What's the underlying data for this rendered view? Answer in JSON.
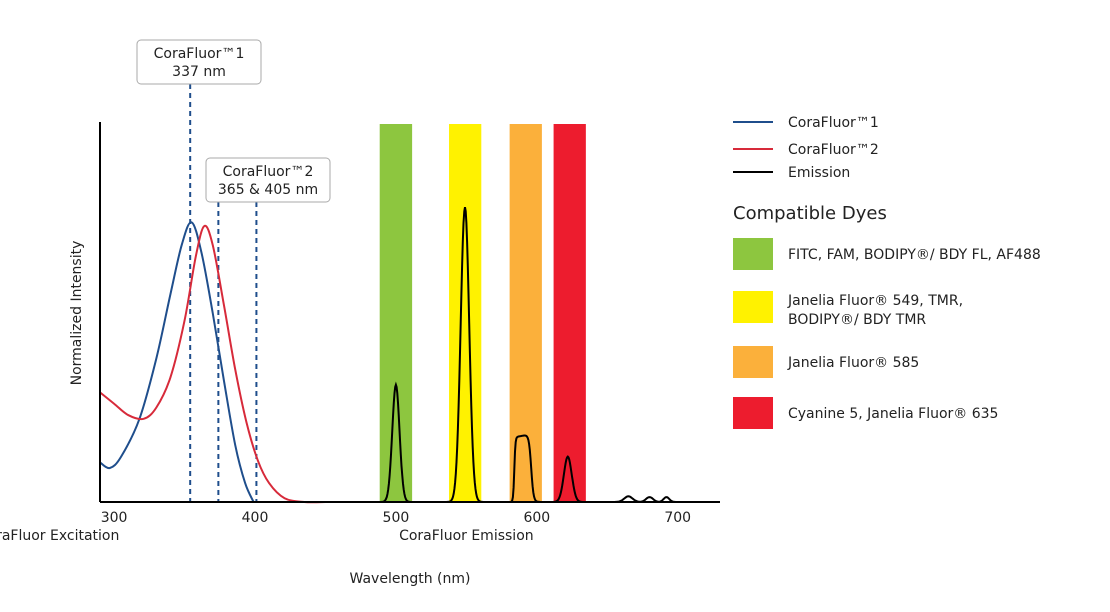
{
  "chart_data": {
    "type": "line",
    "xlabel": "Wavelength (nm)",
    "ylabel": "Normalized Intensity",
    "xlim": [
      290,
      730
    ],
    "ylim": [
      0,
      1
    ],
    "x_ticks": [
      300,
      400,
      500,
      600,
      700
    ],
    "x_sublabels": [
      {
        "text": "CoraFluor Excitation",
        "x": 350
      },
      {
        "text": "CoraFluor Emission",
        "x": 550
      }
    ],
    "grid": false,
    "legend_placement": "right",
    "series": [
      {
        "name": "CoraFluor™1",
        "color": "#1f4e8c",
        "x": [
          290,
          297,
          305,
          318,
          330,
          340,
          348,
          355,
          362,
          370,
          378,
          386,
          393,
          399
        ],
        "y": [
          0.105,
          0.09,
          0.12,
          0.22,
          0.38,
          0.55,
          0.68,
          0.74,
          0.66,
          0.5,
          0.32,
          0.15,
          0.05,
          0.0
        ]
      },
      {
        "name": "CoraFluor™2",
        "color": "#d72a3a",
        "x": [
          290,
          300,
          310,
          321,
          330,
          340,
          350,
          358,
          364,
          370,
          378,
          386,
          394,
          402,
          410,
          421,
          435,
          450
        ],
        "y": [
          0.29,
          0.26,
          0.23,
          0.22,
          0.25,
          0.33,
          0.48,
          0.65,
          0.73,
          0.68,
          0.52,
          0.35,
          0.21,
          0.11,
          0.05,
          0.01,
          0.0,
          0.0
        ]
      },
      {
        "name": "Emission",
        "color": "#000000",
        "peaks": [
          {
            "center": 500,
            "height": 0.31,
            "width": 2.6
          },
          {
            "center": 549,
            "height": 0.78,
            "width": 3.0
          },
          {
            "center": 622,
            "height": 0.12,
            "width": 2.8
          },
          {
            "center": 665,
            "height": 0.015,
            "width": 3
          },
          {
            "center": 680,
            "height": 0.013,
            "width": 2.5
          },
          {
            "center": 692,
            "height": 0.013,
            "width": 2
          }
        ],
        "plateau": {
          "from": 584,
          "to": 596,
          "height": 0.18
        }
      }
    ],
    "excitation_markers": {
      "color": "#1f4e8c",
      "lines": [
        354,
        374,
        401
      ],
      "labels": [
        {
          "line1": "CoraFluor™1",
          "line2": "337 nm"
        },
        {
          "line1": "CoraFluor™2",
          "line2": "365 & 405 nm"
        }
      ]
    },
    "dye_bands": [
      {
        "from": 488.5,
        "to": 511.5,
        "color": "#8dc63f",
        "label": "FITC, FAM, BODIPY®/ BDY FL, AF488"
      },
      {
        "from": 537.7,
        "to": 560.6,
        "color": "#fff200",
        "label": "Janelia Fluor® 549, TMR,",
        "label2": "BODIPY®/ BDY TMR"
      },
      {
        "from": 580.7,
        "to": 603.6,
        "color": "#fbb03b",
        "label": "Janelia Fluor® 585"
      },
      {
        "from": 611.9,
        "to": 634.8,
        "color": "#ed1c2e",
        "label": "Cyanine 5, Janelia Fluor® 635"
      }
    ],
    "legend_title": "Compatible Dyes"
  }
}
